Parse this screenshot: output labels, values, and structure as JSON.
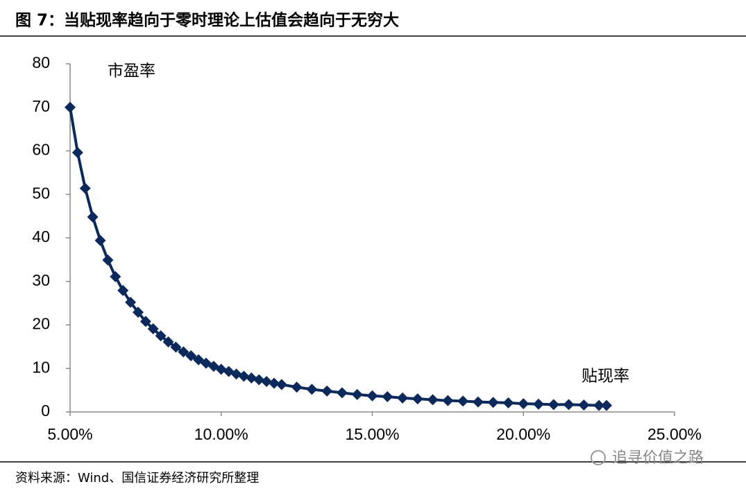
{
  "chart_data": {
    "type": "line",
    "title": "图 7：当贴现率趋向于零时理论上估值会趋向于无穷大",
    "y_label": "市盈率",
    "x_label": "贴现率",
    "source": "资料来源：Wind、国信证券经济研究所整理",
    "watermark": "追寻价值之路",
    "color": "#0b2a5b",
    "x": [
      5,
      5.25,
      5.5,
      5.75,
      6,
      6.25,
      6.5,
      6.75,
      7,
      7.25,
      7.5,
      7.75,
      8,
      8.25,
      8.5,
      8.75,
      9,
      9.25,
      9.5,
      9.75,
      10,
      10.25,
      10.5,
      10.75,
      11,
      11.25,
      11.5,
      11.75,
      12,
      12.5,
      13,
      13.5,
      14,
      14.5,
      15,
      15.5,
      16,
      16.5,
      17,
      17.5,
      18,
      18.5,
      19,
      19.5,
      20,
      20.5,
      21,
      21.5,
      22,
      22.5,
      22.75
    ],
    "values": [
      70.0,
      59.6,
      51.4,
      44.8,
      39.4,
      34.9,
      31.1,
      27.9,
      25.2,
      22.9,
      20.8,
      19.1,
      17.5,
      16.1,
      14.9,
      13.8,
      12.9,
      12.0,
      11.2,
      10.5,
      9.8,
      9.3,
      8.7,
      8.2,
      7.8,
      7.4,
      7.0,
      6.6,
      6.3,
      5.7,
      5.2,
      4.8,
      4.4,
      4.0,
      3.7,
      3.5,
      3.2,
      3.0,
      2.8,
      2.6,
      2.5,
      2.3,
      2.2,
      2.1,
      1.9,
      1.8,
      1.7,
      1.7,
      1.6,
      1.5,
      1.5
    ],
    "xlim": [
      5,
      25
    ],
    "xticks": [
      {
        "value": 5,
        "label": "5.00%"
      },
      {
        "value": 10,
        "label": "10.00%"
      },
      {
        "value": 15,
        "label": "15.00%"
      },
      {
        "value": 20,
        "label": "20.00%"
      },
      {
        "value": 25,
        "label": "25.00%"
      }
    ],
    "ylim": [
      0,
      80
    ],
    "yticks": [
      0,
      10,
      20,
      30,
      40,
      50,
      60,
      70,
      80
    ],
    "grid": false
  }
}
